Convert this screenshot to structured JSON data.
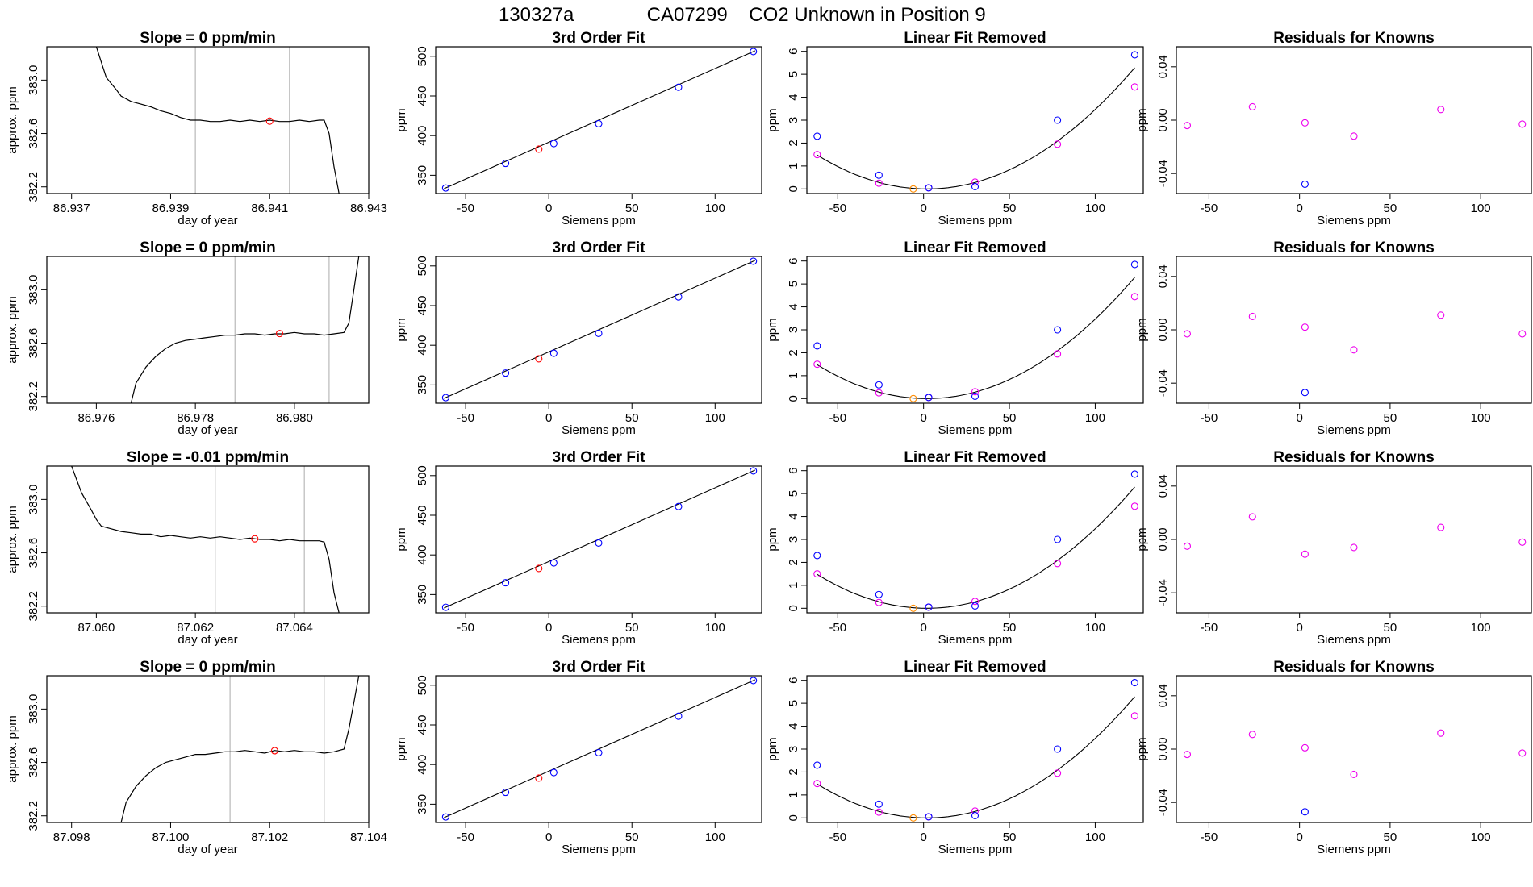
{
  "figure": {
    "title_parts": [
      "130327a",
      "CA07299",
      "CO2 Unknown in Position  9"
    ]
  },
  "colors": {
    "trace": "#000000",
    "window_line": "#bebebe",
    "mean_point": "#ff0000",
    "known_fit": "#0000ff",
    "unknown_fit": "#ff0000",
    "unknown_resid": "#ff8c00",
    "second_fit": "#ee00ee"
  },
  "rows": [
    {
      "trace": {
        "title": "Slope =  0  ppm/min",
        "xlabel": "day of year",
        "ylabel": "approx. ppm",
        "xlim": [
          86.9365,
          86.943
        ],
        "ylim": [
          382.15,
          383.25
        ],
        "xticks": [
          86.937,
          86.939,
          86.941,
          86.943
        ],
        "xtick_labels": [
          "86.937",
          "86.939",
          "86.941",
          "86.943"
        ],
        "yticks": [
          382.2,
          382.6,
          383.0
        ],
        "ytick_labels": [
          "382.2",
          "382.6",
          "383.0"
        ],
        "window": [
          86.9395,
          86.9414
        ],
        "mean_point": [
          86.941,
          382.693
        ],
        "series": [
          [
            86.9375,
            383.25
          ],
          [
            86.9377,
            383.02
          ],
          [
            86.9379,
            382.93
          ],
          [
            86.938,
            382.88
          ],
          [
            86.9382,
            382.84
          ],
          [
            86.9384,
            382.82
          ],
          [
            86.9386,
            382.8
          ],
          [
            86.9388,
            382.77
          ],
          [
            86.939,
            382.75
          ],
          [
            86.9392,
            382.72
          ],
          [
            86.9394,
            382.7
          ],
          [
            86.9396,
            382.7
          ],
          [
            86.9398,
            382.69
          ],
          [
            86.94,
            382.69
          ],
          [
            86.9402,
            382.7
          ],
          [
            86.9404,
            382.69
          ],
          [
            86.9406,
            382.7
          ],
          [
            86.9408,
            382.69
          ],
          [
            86.941,
            382.7
          ],
          [
            86.9412,
            382.69
          ],
          [
            86.9414,
            382.69
          ],
          [
            86.9416,
            382.7
          ],
          [
            86.9418,
            382.69
          ],
          [
            86.942,
            382.7
          ],
          [
            86.9421,
            382.7
          ],
          [
            86.9422,
            382.6
          ],
          [
            86.9423,
            382.35
          ],
          [
            86.9424,
            382.15
          ]
        ]
      },
      "fit": {
        "title": "3rd Order Fit",
        "xlabel": "Siemens ppm",
        "ylabel": "ppm",
        "xlim": [
          -68,
          128
        ],
        "ylim": [
          327,
          512
        ],
        "xticks": [
          -50,
          0,
          50,
          100
        ],
        "yticks": [
          350,
          400,
          450,
          500
        ],
        "knowns_x": [
          -62,
          -26,
          3,
          30,
          78,
          123
        ],
        "knowns_y": [
          334,
          365,
          390,
          415,
          461,
          506
        ],
        "unknown": [
          -6,
          383
        ]
      },
      "linear_removed": {
        "title": "Linear Fit Removed",
        "xlabel": "Siemens ppm",
        "ylabel": "ppm",
        "xlim": [
          -68,
          128
        ],
        "ylim": [
          -0.2,
          6.2
        ],
        "xticks": [
          -50,
          0,
          50,
          100
        ],
        "yticks": [
          0,
          1,
          2,
          3,
          4,
          5,
          6
        ],
        "knowns_y": [
          2.3,
          0.6,
          0.05,
          0.1,
          3.0,
          5.85
        ],
        "second_y": [
          1.5,
          0.25,
          0.05,
          0.3,
          1.95,
          4.45
        ],
        "unknown": [
          -6,
          0
        ],
        "curve_center": 2,
        "curve_coef": 0.000361
      },
      "residuals": {
        "title": "Residuals for Knowns",
        "xlabel": "Siemens ppm",
        "ylabel": "ppm",
        "xlim": [
          -68,
          128
        ],
        "ylim": [
          -0.055,
          0.055
        ],
        "xticks": [
          -50,
          0,
          50,
          100
        ],
        "yticks": [
          -0.04,
          0.0,
          0.04
        ],
        "ytick_labels": [
          "-0.04",
          "0.00",
          "0.04"
        ],
        "second_y": [
          -0.004,
          0.01,
          -0.002,
          -0.012,
          0.008,
          -0.003
        ],
        "blue_point": [
          3,
          -0.048
        ]
      }
    },
    {
      "trace": {
        "title": "Slope =  0  ppm/min",
        "xlabel": "day of year",
        "ylabel": "approx. ppm",
        "xlim": [
          86.975,
          86.9815
        ],
        "ylim": [
          382.15,
          383.25
        ],
        "xticks": [
          86.976,
          86.978,
          86.98
        ],
        "xtick_labels": [
          "86.976",
          "86.978",
          "86.980"
        ],
        "yticks": [
          382.2,
          382.6,
          383.0
        ],
        "ytick_labels": [
          "382.2",
          "382.6",
          "383.0"
        ],
        "window": [
          86.9788,
          86.9807
        ],
        "mean_point": [
          86.9797,
          382.672
        ],
        "series": [
          [
            86.9767,
            382.15
          ],
          [
            86.9768,
            382.3
          ],
          [
            86.977,
            382.42
          ],
          [
            86.9772,
            382.5
          ],
          [
            86.9774,
            382.56
          ],
          [
            86.9776,
            382.6
          ],
          [
            86.9778,
            382.62
          ],
          [
            86.978,
            382.63
          ],
          [
            86.9782,
            382.64
          ],
          [
            86.9784,
            382.65
          ],
          [
            86.9786,
            382.66
          ],
          [
            86.9788,
            382.66
          ],
          [
            86.979,
            382.67
          ],
          [
            86.9792,
            382.67
          ],
          [
            86.9794,
            382.66
          ],
          [
            86.9796,
            382.67
          ],
          [
            86.9798,
            382.67
          ],
          [
            86.98,
            382.68
          ],
          [
            86.9802,
            382.67
          ],
          [
            86.9804,
            382.67
          ],
          [
            86.9806,
            382.66
          ],
          [
            86.9808,
            382.67
          ],
          [
            86.981,
            382.68
          ],
          [
            86.9811,
            382.75
          ],
          [
            86.9812,
            383.0
          ],
          [
            86.9813,
            383.25
          ]
        ]
      },
      "fit": {
        "title": "3rd Order Fit",
        "xlabel": "Siemens ppm",
        "ylabel": "ppm",
        "xlim": [
          -68,
          128
        ],
        "ylim": [
          327,
          512
        ],
        "xticks": [
          -50,
          0,
          50,
          100
        ],
        "yticks": [
          350,
          400,
          450,
          500
        ],
        "knowns_x": [
          -62,
          -26,
          3,
          30,
          78,
          123
        ],
        "knowns_y": [
          334,
          365,
          390,
          415,
          461,
          506
        ],
        "unknown": [
          -6,
          383
        ]
      },
      "linear_removed": {
        "title": "Linear Fit Removed",
        "xlabel": "Siemens ppm",
        "ylabel": "ppm",
        "xlim": [
          -68,
          128
        ],
        "ylim": [
          -0.2,
          6.2
        ],
        "xticks": [
          -50,
          0,
          50,
          100
        ],
        "yticks": [
          0,
          1,
          2,
          3,
          4,
          5,
          6
        ],
        "knowns_y": [
          2.3,
          0.6,
          0.05,
          0.1,
          3.0,
          5.85
        ],
        "second_y": [
          1.5,
          0.25,
          0.05,
          0.3,
          1.95,
          4.45
        ],
        "unknown": [
          -6,
          0
        ],
        "curve_center": 2,
        "curve_coef": 0.000361
      },
      "residuals": {
        "title": "Residuals for Knowns",
        "xlabel": "Siemens ppm",
        "ylabel": "ppm",
        "xlim": [
          -68,
          128
        ],
        "ylim": [
          -0.055,
          0.055
        ],
        "xticks": [
          -50,
          0,
          50,
          100
        ],
        "yticks": [
          -0.04,
          0.0,
          0.04
        ],
        "ytick_labels": [
          "-0.04",
          "0.00",
          "0.04"
        ],
        "second_y": [
          -0.003,
          0.01,
          0.002,
          -0.015,
          0.011,
          -0.003
        ],
        "blue_point": [
          3,
          -0.047
        ]
      }
    },
    {
      "trace": {
        "title": "Slope =  -0.01  ppm/min",
        "xlabel": "day of year",
        "ylabel": "approx. ppm",
        "xlim": [
          87.059,
          87.0655
        ],
        "ylim": [
          382.15,
          383.25
        ],
        "xticks": [
          87.06,
          87.062,
          87.064
        ],
        "xtick_labels": [
          "87.060",
          "87.062",
          "87.064"
        ],
        "yticks": [
          382.2,
          382.6,
          383.0
        ],
        "ytick_labels": [
          "382.2",
          "382.6",
          "383.0"
        ],
        "window": [
          87.0624,
          87.0642
        ],
        "mean_point": [
          87.0632,
          382.705
        ],
        "series": [
          [
            87.0595,
            383.25
          ],
          [
            87.0597,
            383.05
          ],
          [
            87.0599,
            382.92
          ],
          [
            87.06,
            382.85
          ],
          [
            87.0601,
            382.8
          ],
          [
            87.0603,
            382.78
          ],
          [
            87.0605,
            382.76
          ],
          [
            87.0607,
            382.75
          ],
          [
            87.0609,
            382.74
          ],
          [
            87.0611,
            382.74
          ],
          [
            87.0613,
            382.72
          ],
          [
            87.0615,
            382.73
          ],
          [
            87.0617,
            382.72
          ],
          [
            87.0619,
            382.71
          ],
          [
            87.0621,
            382.72
          ],
          [
            87.0623,
            382.71
          ],
          [
            87.0625,
            382.72
          ],
          [
            87.0627,
            382.71
          ],
          [
            87.0629,
            382.7
          ],
          [
            87.0631,
            382.71
          ],
          [
            87.0633,
            382.7
          ],
          [
            87.0635,
            382.7
          ],
          [
            87.0637,
            382.69
          ],
          [
            87.0639,
            382.7
          ],
          [
            87.0641,
            382.69
          ],
          [
            87.0643,
            382.69
          ],
          [
            87.0645,
            382.69
          ],
          [
            87.0646,
            382.68
          ],
          [
            87.0647,
            382.55
          ],
          [
            87.0648,
            382.3
          ],
          [
            87.0649,
            382.15
          ]
        ]
      },
      "fit": {
        "title": "3rd Order Fit",
        "xlabel": "Siemens ppm",
        "ylabel": "ppm",
        "xlim": [
          -68,
          128
        ],
        "ylim": [
          327,
          512
        ],
        "xticks": [
          -50,
          0,
          50,
          100
        ],
        "yticks": [
          350,
          400,
          450,
          500
        ],
        "knowns_x": [
          -62,
          -26,
          3,
          30,
          78,
          123
        ],
        "knowns_y": [
          334,
          365,
          390,
          415,
          461,
          506
        ],
        "unknown": [
          -6,
          383
        ]
      },
      "linear_removed": {
        "title": "Linear Fit Removed",
        "xlabel": "Siemens ppm",
        "ylabel": "ppm",
        "xlim": [
          -68,
          128
        ],
        "ylim": [
          -0.2,
          6.2
        ],
        "xticks": [
          -50,
          0,
          50,
          100
        ],
        "yticks": [
          0,
          1,
          2,
          3,
          4,
          5,
          6
        ],
        "knowns_y": [
          2.3,
          0.6,
          0.05,
          0.1,
          3.0,
          5.85
        ],
        "second_y": [
          1.5,
          0.25,
          0.05,
          0.3,
          1.95,
          4.45
        ],
        "unknown": [
          -6,
          0
        ],
        "curve_center": 2,
        "curve_coef": 0.000361
      },
      "residuals": {
        "title": "Residuals for Knowns",
        "xlabel": "Siemens ppm",
        "ylabel": "ppm",
        "xlim": [
          -68,
          128
        ],
        "ylim": [
          -0.055,
          0.055
        ],
        "xticks": [
          -50,
          0,
          50,
          100
        ],
        "yticks": [
          -0.04,
          0.0,
          0.04
        ],
        "ytick_labels": [
          "-0.04",
          "0.00",
          "0.04"
        ],
        "second_y": [
          -0.005,
          0.017,
          -0.011,
          -0.006,
          0.009,
          -0.002
        ],
        "blue_point": null
      }
    },
    {
      "trace": {
        "title": "Slope =  0  ppm/min",
        "xlabel": "day of year",
        "ylabel": "approx. ppm",
        "xlim": [
          87.0975,
          87.104
        ],
        "ylim": [
          382.15,
          383.25
        ],
        "xticks": [
          87.098,
          87.1,
          87.102,
          87.104
        ],
        "xtick_labels": [
          "87.098",
          "87.100",
          "87.102",
          "87.104"
        ],
        "yticks": [
          382.2,
          382.6,
          383.0
        ],
        "ytick_labels": [
          "382.2",
          "382.6",
          "383.0"
        ],
        "window": [
          87.1012,
          87.1031
        ],
        "mean_point": [
          87.1021,
          382.688
        ],
        "series": [
          [
            87.099,
            382.15
          ],
          [
            87.0991,
            382.3
          ],
          [
            87.0993,
            382.42
          ],
          [
            87.0995,
            382.5
          ],
          [
            87.0997,
            382.56
          ],
          [
            87.0999,
            382.6
          ],
          [
            87.1001,
            382.62
          ],
          [
            87.1003,
            382.64
          ],
          [
            87.1005,
            382.66
          ],
          [
            87.1007,
            382.66
          ],
          [
            87.1009,
            382.67
          ],
          [
            87.1011,
            382.68
          ],
          [
            87.1013,
            382.68
          ],
          [
            87.1015,
            382.69
          ],
          [
            87.1017,
            382.68
          ],
          [
            87.1019,
            382.67
          ],
          [
            87.1021,
            382.69
          ],
          [
            87.1023,
            382.68
          ],
          [
            87.1025,
            382.69
          ],
          [
            87.1027,
            382.68
          ],
          [
            87.1029,
            382.68
          ],
          [
            87.1031,
            382.67
          ],
          [
            87.1033,
            382.68
          ],
          [
            87.1035,
            382.7
          ],
          [
            87.1036,
            382.85
          ],
          [
            87.1037,
            383.05
          ],
          [
            87.1038,
            383.25
          ]
        ]
      },
      "fit": {
        "title": "3rd Order Fit",
        "xlabel": "Siemens ppm",
        "ylabel": "ppm",
        "xlim": [
          -68,
          128
        ],
        "ylim": [
          327,
          512
        ],
        "xticks": [
          -50,
          0,
          50,
          100
        ],
        "yticks": [
          350,
          400,
          450,
          500
        ],
        "knowns_x": [
          -62,
          -26,
          3,
          30,
          78,
          123
        ],
        "knowns_y": [
          334,
          365,
          390,
          415,
          461,
          506
        ],
        "unknown": [
          -6,
          383
        ]
      },
      "linear_removed": {
        "title": "Linear Fit Removed",
        "xlabel": "Siemens ppm",
        "ylabel": "ppm",
        "xlim": [
          -68,
          128
        ],
        "ylim": [
          -0.2,
          6.2
        ],
        "xticks": [
          -50,
          0,
          50,
          100
        ],
        "yticks": [
          0,
          1,
          2,
          3,
          4,
          5,
          6
        ],
        "knowns_y": [
          2.3,
          0.6,
          0.05,
          0.1,
          3.0,
          5.9
        ],
        "second_y": [
          1.5,
          0.25,
          0.05,
          0.3,
          1.95,
          4.45
        ],
        "unknown": [
          -6,
          0
        ],
        "curve_center": 2,
        "curve_coef": 0.000361
      },
      "residuals": {
        "title": "Residuals for Knowns",
        "xlabel": "Siemens ppm",
        "ylabel": "ppm",
        "xlim": [
          -68,
          128
        ],
        "ylim": [
          -0.055,
          0.055
        ],
        "xticks": [
          -50,
          0,
          50,
          100
        ],
        "yticks": [
          -0.04,
          0.0,
          0.04
        ],
        "ytick_labels": [
          "-0.04",
          "0.00",
          "0.04"
        ],
        "second_y": [
          -0.004,
          0.011,
          0.001,
          -0.019,
          0.012,
          -0.003
        ],
        "blue_point": [
          3,
          -0.047
        ]
      }
    }
  ],
  "chart_data": []
}
